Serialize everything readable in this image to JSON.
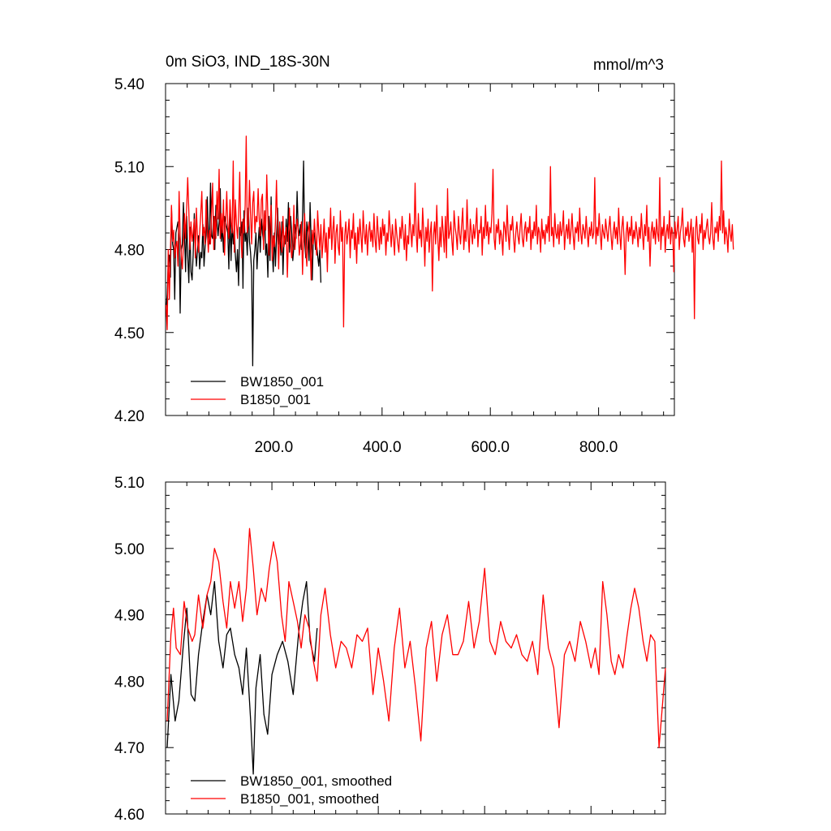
{
  "chart_data": [
    {
      "type": "line",
      "title": "0m SiO3, IND_18S-30N",
      "units": "mmol/m^3",
      "xlim": [
        0,
        940
      ],
      "ylim": [
        4.2,
        5.4
      ],
      "ytick_labels": [
        "4.20",
        "4.50",
        "4.80",
        "5.10",
        "5.40"
      ],
      "xtick_labels": [
        "200.0",
        "400.0",
        "600.0",
        "800.0"
      ],
      "legend_position": "bottom-left",
      "series": [
        {
          "name": "BW1850_001",
          "color": "#000000",
          "x_start": 1,
          "x_step": 2,
          "values": [
            4.58,
            4.64,
            4.75,
            4.78,
            4.7,
            4.95,
            4.82,
            4.8,
            4.62,
            4.86,
            4.88,
            4.9,
            4.84,
            4.57,
            4.8,
            4.82,
            4.97,
            4.86,
            4.72,
            4.92,
            4.78,
            4.68,
            4.88,
            4.72,
            4.69,
            4.78,
            4.93,
            4.82,
            4.74,
            4.8,
            4.85,
            4.73,
            4.79,
            4.77,
            4.89,
            4.74,
            4.81,
            4.85,
            4.99,
            4.86,
            4.82,
            5.04,
            4.85,
            4.84,
            4.92,
            4.8,
            4.96,
            4.9,
            4.85,
            4.9,
            5.02,
            4.83,
            4.88,
            4.79,
            4.92,
            4.9,
            4.88,
            4.86,
            4.73,
            4.94,
            4.76,
            4.89,
            4.82,
            4.88,
            4.78,
            4.72,
            4.8,
            4.67,
            4.88,
            4.85,
            4.9,
            4.66,
            4.94,
            4.83,
            4.86,
            4.78,
            4.95,
            4.83,
            4.79,
            4.72,
            4.38,
            4.76,
            4.8,
            4.86,
            4.73,
            4.82,
            4.88,
            4.79,
            4.91,
            4.86,
            4.83,
            4.94,
            4.78,
            4.82,
            4.7,
            4.92,
            4.76,
            4.99,
            4.8,
            4.72,
            4.86,
            4.74,
            4.84,
            4.95,
            4.82,
            4.86,
            4.78,
            4.9,
            4.71,
            4.85,
            4.82,
            4.91,
            4.83,
            4.97,
            4.79,
            4.92,
            4.86,
            4.76,
            4.81,
            4.89,
            4.84,
            5.01,
            4.88,
            4.85,
            4.89,
            4.8,
            4.92,
            5.12,
            4.83,
            4.77,
            4.9,
            4.86,
            4.76,
            4.97,
            4.83,
            4.69,
            4.85,
            4.86,
            4.8,
            4.82,
            4.78,
            4.74,
            4.8,
            4.68
          ]
        },
        {
          "name": "B1850_001",
          "color": "#ff0000",
          "x_start": 1,
          "x_step": 2,
          "values": [
            4.6,
            4.51,
            4.8,
            4.62,
            4.79,
            4.96,
            4.83,
            4.87,
            4.77,
            4.81,
            4.83,
            4.74,
            5.01,
            4.85,
            4.78,
            4.73,
            4.82,
            4.93,
            4.84,
            4.95,
            5.06,
            4.94,
            4.8,
            4.9,
            4.83,
            4.86,
            4.91,
            4.77,
            4.95,
            4.84,
            4.79,
            4.86,
            4.93,
            5.01,
            4.85,
            4.88,
            4.82,
            4.98,
            4.87,
            4.79,
            4.87,
            4.82,
            4.94,
            5.04,
            4.8,
            4.92,
            4.84,
            5.01,
            4.91,
            5.09,
            4.84,
            4.93,
            4.86,
            4.98,
            4.78,
            4.89,
            5.01,
            4.89,
            4.84,
            4.98,
            4.9,
            4.86,
            5.12,
            4.79,
            4.98,
            4.89,
            4.84,
            4.92,
            5.08,
            4.87,
            4.77,
            4.91,
            4.86,
            4.96,
            5.21,
            4.86,
            4.89,
            5.05,
            4.93,
            4.82,
            4.97,
            5.01,
            4.86,
            4.92,
            4.9,
            5.02,
            4.91,
            4.85,
            4.98,
            5.0,
            4.8,
            4.94,
            4.87,
            5.07,
            4.92,
            4.78,
            4.88,
            4.96,
            4.76,
            4.85,
            4.81,
            4.9,
            5.05,
            4.86,
            4.73,
            4.9,
            4.84,
            4.79,
            4.92,
            4.81,
            4.85,
            4.88,
            4.7,
            4.84,
            4.95,
            4.82,
            4.77,
            4.81,
            4.96,
            4.8,
            4.86,
            4.91,
            4.87,
            4.78,
            4.82,
            4.9,
            4.71,
            4.85,
            4.93,
            4.8,
            4.74,
            4.86,
            4.9,
            4.82,
            4.69,
            4.87,
            4.82,
            4.91,
            4.84,
            4.78,
            4.94,
            4.86,
            4.8,
            4.89,
            4.77,
            4.83,
            4.91,
            4.79,
            4.86,
            4.72,
            4.88,
            4.84,
            4.95,
            4.8,
            4.87,
            4.92,
            4.75,
            4.86,
            4.89,
            4.81,
            4.78,
            4.94,
            4.83,
            4.88,
            4.52,
            4.85,
            4.9,
            4.82,
            4.86,
            4.91,
            4.77,
            4.87,
            4.84,
            4.93,
            4.8,
            4.86,
            4.75,
            4.88,
            4.82,
            4.91,
            4.85,
            4.79,
            4.94,
            4.86,
            4.82,
            4.89,
            4.78,
            4.86,
            4.9,
            4.83,
            4.87,
            4.81,
            4.93,
            4.84,
            4.79,
            4.92,
            4.86,
            4.8,
            4.88,
            4.82,
            4.91,
            4.85,
            4.89,
            4.78,
            4.86,
            4.83,
            4.94,
            4.87,
            4.81,
            4.89,
            4.84,
            4.78,
            4.91,
            4.86,
            4.82,
            4.79,
            4.88,
            4.84,
            4.92,
            4.86,
            4.8,
            4.89,
            4.76,
            4.85,
            4.82,
            4.93,
            4.87,
            4.81,
            4.89,
            4.85,
            5.04,
            4.86,
            4.79,
            4.93,
            4.84,
            4.87,
            4.81,
            4.95,
            4.86,
            4.74,
            4.88,
            4.83,
            4.91,
            4.79,
            4.86,
            4.9,
            4.65,
            4.85,
            4.9,
            4.82,
            4.96,
            4.84,
            4.76,
            4.88,
            4.81,
            4.92,
            4.86,
            4.79,
            4.92,
            4.77,
            5.02,
            4.84,
            4.86,
            4.9,
            4.83,
            4.78,
            4.94,
            4.88,
            4.85,
            4.8,
            4.92,
            4.86,
            4.82,
            4.89,
            4.95,
            4.8,
            4.87,
            4.83,
            4.98,
            4.85,
            4.79,
            4.91,
            4.86,
            4.82,
            4.89,
            4.84,
            4.88,
            4.95,
            4.81,
            4.87,
            4.86,
            4.92,
            4.78,
            4.88,
            4.84,
            4.96,
            4.85,
            4.9,
            4.82,
            4.88,
            4.86,
            4.93,
            5.09,
            4.84,
            4.8,
            4.89,
            4.86,
            4.91,
            4.82,
            4.87,
            4.85,
            4.78,
            4.9,
            4.88,
            4.83,
            4.96,
            4.86,
            4.8,
            4.89,
            4.87,
            4.92,
            4.84,
            4.79,
            4.86,
            4.9,
            4.85,
            4.82,
            4.88,
            4.93,
            4.84,
            4.81,
            4.87,
            4.9,
            4.83,
            4.88,
            4.86,
            4.92,
            4.8,
            4.87,
            4.84,
            4.9,
            4.85,
            4.96,
            4.82,
            4.88,
            4.86,
            4.79,
            4.91,
            4.84,
            4.87,
            4.82,
            4.89,
            4.86,
            4.92,
            4.83,
            5.1,
            4.85,
            4.88,
            4.81,
            4.93,
            4.86,
            4.84,
            4.89,
            4.82,
            4.9,
            4.85,
            4.87,
            4.94,
            4.8,
            4.86,
            4.89,
            4.84,
            4.91,
            4.82,
            4.87,
            4.93,
            4.85,
            4.8,
            4.88,
            4.86,
            4.9,
            4.83,
            4.95,
            4.86,
            4.82,
            4.89,
            4.87,
            4.84,
            4.92,
            4.86,
            4.81,
            4.88,
            4.85,
            4.9,
            4.84,
            4.86,
            5.06,
            4.82,
            4.88,
            4.85,
            4.93,
            4.86,
            4.8,
            4.89,
            4.86,
            4.84,
            4.91,
            4.87,
            4.83,
            4.88,
            4.92,
            4.85,
            4.8,
            4.86,
            4.9,
            4.84,
            4.88,
            4.82,
            4.95,
            4.86,
            4.8,
            4.88,
            4.92,
            4.84,
            4.71,
            4.86,
            4.9,
            4.83,
            4.88,
            4.85,
            4.92,
            4.82,
            4.87,
            4.84,
            4.9,
            4.86,
            4.81,
            4.88,
            4.84,
            4.93,
            4.86,
            4.8,
            4.89,
            4.85,
            4.96,
            4.83,
            4.88,
            4.74,
            4.86,
            4.9,
            4.84,
            4.88,
            4.82,
            4.91,
            4.86,
            4.83,
            5.06,
            4.8,
            4.88,
            4.85,
            4.92,
            4.79,
            4.86,
            4.89,
            4.84,
            4.94,
            4.82,
            4.88,
            4.86,
            4.72,
            4.9,
            4.84,
            4.87,
            4.92,
            4.8,
            4.86,
            4.89,
            4.95,
            4.84,
            4.81,
            4.88,
            4.85,
            4.9,
            4.83,
            4.86,
            4.91,
            4.79,
            4.88,
            4.55,
            4.87,
            4.92,
            4.84,
            4.82,
            4.89,
            4.86,
            4.93,
            4.8,
            4.87,
            4.84,
            4.88,
            4.91,
            4.85,
            4.82,
            4.86,
            4.97,
            4.84,
            4.8,
            4.88,
            4.86,
            4.9,
            4.83,
            4.92,
            4.87,
            5.12,
            4.86,
            4.94,
            4.82,
            4.88,
            4.85,
            4.79,
            4.91,
            4.86,
            4.83,
            4.89,
            4.8
          ]
        }
      ]
    },
    {
      "type": "line",
      "title": "",
      "xlim": [
        0,
        940
      ],
      "ylim": [
        4.6,
        5.1
      ],
      "ytick_labels": [
        "4.60",
        "4.70",
        "4.80",
        "4.90",
        "5.00",
        "5.10"
      ],
      "legend_position": "bottom-left",
      "series": [
        {
          "name": "BW1850_001, smoothed",
          "color": "#000000",
          "x": [
            3,
            10,
            18,
            25,
            33,
            40,
            48,
            55,
            62,
            70,
            78,
            85,
            92,
            100,
            108,
            115,
            122,
            130,
            138,
            145,
            152,
            160,
            165,
            170,
            178,
            185,
            192,
            200,
            210,
            220,
            230,
            240,
            250,
            258,
            265,
            272,
            280,
            285
          ],
          "values": [
            4.7,
            4.81,
            4.74,
            4.77,
            4.85,
            4.91,
            4.78,
            4.77,
            4.84,
            4.89,
            4.93,
            4.9,
            4.95,
            4.86,
            4.82,
            4.87,
            4.88,
            4.84,
            4.82,
            4.78,
            4.85,
            4.74,
            4.66,
            4.79,
            4.84,
            4.75,
            4.72,
            4.81,
            4.84,
            4.86,
            4.83,
            4.78,
            4.87,
            4.92,
            4.95,
            4.86,
            4.83,
            4.88
          ]
        },
        {
          "name": "B1850_001, smoothed",
          "color": "#ff0000",
          "x": [
            3,
            10,
            15,
            20,
            28,
            35,
            42,
            50,
            55,
            62,
            70,
            78,
            85,
            92,
            100,
            108,
            115,
            122,
            130,
            138,
            145,
            152,
            158,
            165,
            172,
            180,
            188,
            195,
            203,
            210,
            218,
            225,
            232,
            240,
            248,
            255,
            262,
            270,
            278,
            285,
            292,
            300,
            310,
            320,
            330,
            340,
            350,
            360,
            370,
            380,
            390,
            400,
            410,
            420,
            430,
            440,
            450,
            460,
            470,
            480,
            490,
            500,
            510,
            520,
            530,
            540,
            550,
            560,
            570,
            580,
            590,
            600,
            610,
            620,
            630,
            640,
            650,
            660,
            670,
            680,
            690,
            700,
            710,
            720,
            730,
            740,
            750,
            760,
            770,
            780,
            790,
            800,
            808,
            815,
            822,
            830,
            838,
            845,
            852,
            860,
            868,
            875,
            882,
            890,
            898,
            905,
            912,
            920,
            928,
            935,
            940
          ],
          "values": [
            4.74,
            4.87,
            4.91,
            4.85,
            4.84,
            4.92,
            4.88,
            4.86,
            4.87,
            4.93,
            4.88,
            4.93,
            4.95,
            5.0,
            4.98,
            4.92,
            4.88,
            4.95,
            4.91,
            4.95,
            4.89,
            4.94,
            5.03,
            4.97,
            4.9,
            4.94,
            4.92,
            4.97,
            5.01,
            4.98,
            4.9,
            4.86,
            4.95,
            4.92,
            4.89,
            4.85,
            4.9,
            4.88,
            4.83,
            4.8,
            4.9,
            4.94,
            4.87,
            4.82,
            4.86,
            4.85,
            4.82,
            4.87,
            4.86,
            4.88,
            4.78,
            4.85,
            4.8,
            4.74,
            4.85,
            4.91,
            4.82,
            4.86,
            4.79,
            4.71,
            4.85,
            4.89,
            4.8,
            4.87,
            4.9,
            4.84,
            4.84,
            4.86,
            4.92,
            4.85,
            4.89,
            4.97,
            4.86,
            4.84,
            4.89,
            4.86,
            4.85,
            4.87,
            4.84,
            4.83,
            4.86,
            4.81,
            4.93,
            4.85,
            4.82,
            4.73,
            4.84,
            4.86,
            4.83,
            4.89,
            4.86,
            4.82,
            4.85,
            4.81,
            4.95,
            4.9,
            4.83,
            4.81,
            4.84,
            4.82,
            4.87,
            4.91,
            4.94,
            4.91,
            4.86,
            4.83,
            4.87,
            4.86,
            4.7,
            4.77,
            4.82
          ]
        }
      ]
    }
  ]
}
